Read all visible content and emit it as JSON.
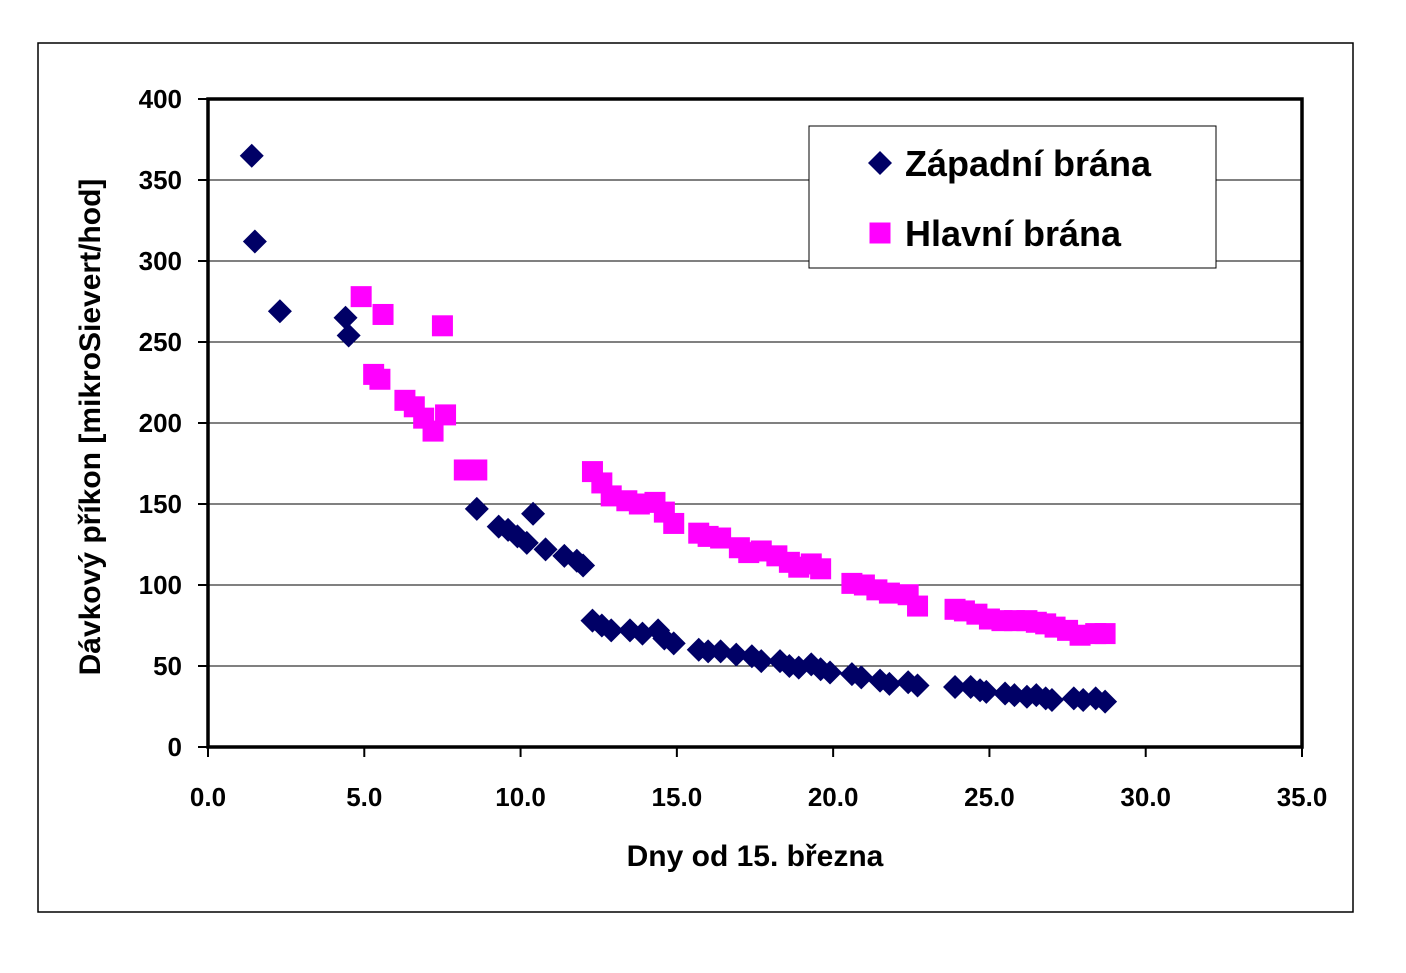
{
  "chart_data": {
    "type": "scatter",
    "title": "",
    "xlabel": "Dny od 15. března",
    "ylabel": "Dávkový příkon [mikroSievert/hod]",
    "xlim": [
      0,
      35
    ],
    "ylim": [
      0,
      400
    ],
    "x_ticks": [
      0,
      5,
      10,
      15,
      20,
      25,
      30,
      35
    ],
    "x_tick_labels": [
      "0.0",
      "5.0",
      "10.0",
      "15.0",
      "20.0",
      "25.0",
      "30.0",
      "35.0"
    ],
    "y_ticks": [
      0,
      50,
      100,
      150,
      200,
      250,
      300,
      350,
      400
    ],
    "y_tick_labels": [
      "0",
      "50",
      "100",
      "150",
      "200",
      "250",
      "300",
      "350",
      "400"
    ],
    "grid": "horizontal",
    "legend_position": "top-right",
    "series": [
      {
        "name": "Západní brána",
        "marker": "diamond",
        "color": "#000066",
        "points": [
          [
            1.4,
            365
          ],
          [
            1.5,
            312
          ],
          [
            2.3,
            269
          ],
          [
            4.4,
            265
          ],
          [
            4.5,
            254
          ],
          [
            8.6,
            147
          ],
          [
            9.3,
            136
          ],
          [
            9.6,
            134
          ],
          [
            9.9,
            130
          ],
          [
            10.2,
            126
          ],
          [
            10.4,
            144
          ],
          [
            10.8,
            122
          ],
          [
            11.4,
            118
          ],
          [
            11.8,
            115
          ],
          [
            12.0,
            112
          ],
          [
            12.3,
            78
          ],
          [
            12.6,
            75
          ],
          [
            12.9,
            72
          ],
          [
            13.5,
            72
          ],
          [
            13.9,
            70
          ],
          [
            14.4,
            72
          ],
          [
            14.6,
            67
          ],
          [
            14.9,
            64
          ],
          [
            15.7,
            60
          ],
          [
            16.0,
            59
          ],
          [
            16.4,
            59
          ],
          [
            16.9,
            57
          ],
          [
            17.4,
            56
          ],
          [
            17.7,
            53
          ],
          [
            18.3,
            53
          ],
          [
            18.6,
            50
          ],
          [
            18.9,
            49
          ],
          [
            19.3,
            51
          ],
          [
            19.6,
            48
          ],
          [
            19.9,
            46
          ],
          [
            20.6,
            45
          ],
          [
            20.9,
            43
          ],
          [
            21.5,
            41
          ],
          [
            21.8,
            39
          ],
          [
            22.4,
            40
          ],
          [
            22.7,
            38
          ],
          [
            23.9,
            37
          ],
          [
            24.4,
            37
          ],
          [
            24.7,
            35
          ],
          [
            24.9,
            34
          ],
          [
            25.5,
            33
          ],
          [
            25.8,
            32
          ],
          [
            26.2,
            31
          ],
          [
            26.5,
            32
          ],
          [
            26.8,
            30
          ],
          [
            27.0,
            29
          ],
          [
            27.7,
            30
          ],
          [
            28.0,
            29
          ],
          [
            28.4,
            30
          ],
          [
            28.7,
            28
          ]
        ]
      },
      {
        "name": "Hlavní brána",
        "marker": "square",
        "color": "#ff00ff",
        "points": [
          [
            4.9,
            278
          ],
          [
            5.6,
            267
          ],
          [
            7.5,
            260
          ],
          [
            5.3,
            230
          ],
          [
            5.5,
            227
          ],
          [
            6.3,
            214
          ],
          [
            6.6,
            210
          ],
          [
            6.9,
            203
          ],
          [
            7.2,
            195
          ],
          [
            7.6,
            205
          ],
          [
            8.2,
            171
          ],
          [
            8.6,
            171
          ],
          [
            12.3,
            170
          ],
          [
            12.6,
            163
          ],
          [
            12.9,
            155
          ],
          [
            13.4,
            152
          ],
          [
            13.8,
            150
          ],
          [
            14.3,
            151
          ],
          [
            14.6,
            145
          ],
          [
            14.9,
            138
          ],
          [
            15.7,
            132
          ],
          [
            16.0,
            130
          ],
          [
            16.4,
            129
          ],
          [
            17.0,
            123
          ],
          [
            17.3,
            120
          ],
          [
            17.7,
            121
          ],
          [
            18.2,
            118
          ],
          [
            18.6,
            114
          ],
          [
            18.9,
            111
          ],
          [
            19.3,
            113
          ],
          [
            19.6,
            110
          ],
          [
            20.6,
            101
          ],
          [
            21.0,
            100
          ],
          [
            21.4,
            97
          ],
          [
            21.8,
            95
          ],
          [
            22.4,
            94
          ],
          [
            22.7,
            87
          ],
          [
            23.9,
            85
          ],
          [
            24.2,
            84
          ],
          [
            24.6,
            82
          ],
          [
            25.0,
            79
          ],
          [
            25.4,
            78
          ],
          [
            25.8,
            78
          ],
          [
            26.2,
            78
          ],
          [
            26.5,
            77
          ],
          [
            26.8,
            76
          ],
          [
            27.1,
            74
          ],
          [
            27.5,
            72
          ],
          [
            27.9,
            69
          ],
          [
            28.4,
            70
          ],
          [
            28.7,
            70
          ]
        ]
      }
    ]
  }
}
